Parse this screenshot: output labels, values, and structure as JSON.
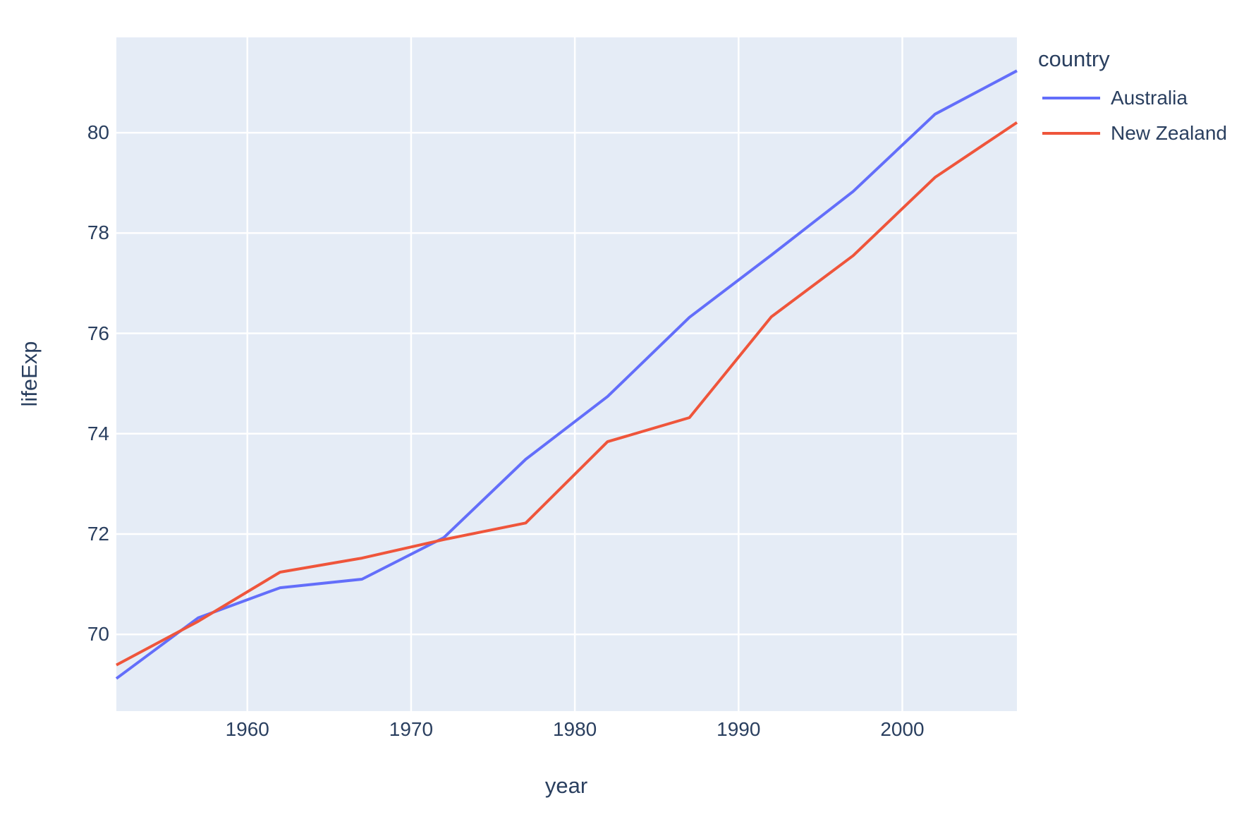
{
  "chart_data": {
    "type": "line",
    "title": "",
    "xlabel": "year",
    "ylabel": "lifeExp",
    "legend_title": "country",
    "legend_position": "right",
    "grid": true,
    "x": [
      1952,
      1957,
      1962,
      1967,
      1972,
      1977,
      1982,
      1987,
      1992,
      1997,
      2002,
      2007
    ],
    "series": [
      {
        "name": "Australia",
        "color": "#636EFA",
        "values": [
          69.12,
          70.33,
          70.93,
          71.1,
          71.93,
          73.49,
          74.74,
          76.32,
          77.56,
          78.83,
          80.37,
          81.235
        ]
      },
      {
        "name": "New Zealand",
        "color": "#EF553B",
        "values": [
          69.39,
          70.26,
          71.24,
          71.52,
          71.89,
          72.22,
          73.84,
          74.32,
          76.33,
          77.55,
          79.11,
          80.204
        ]
      }
    ],
    "x_ticks": [
      1960,
      1970,
      1980,
      1990,
      2000
    ],
    "y_ticks": [
      70,
      72,
      74,
      76,
      78,
      80
    ],
    "xlim": [
      1952,
      2007
    ],
    "ylim": [
      68.47,
      81.9
    ],
    "colors": {
      "plot_background": "#E5ECF6",
      "gridline": "#FFFFFF",
      "text": "#2A3F5F",
      "paper_background": "#FFFFFF"
    }
  }
}
